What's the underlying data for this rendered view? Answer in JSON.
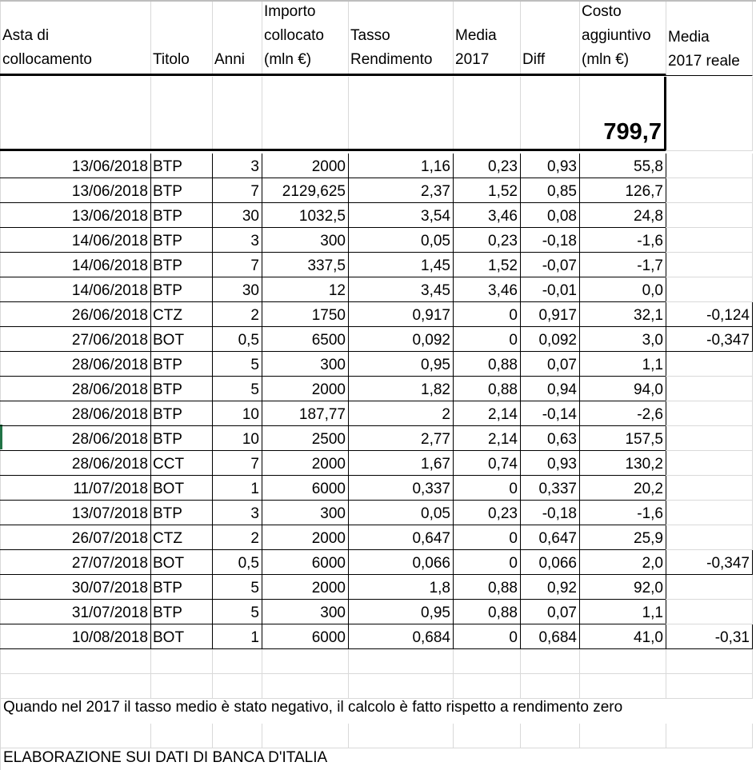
{
  "headers": [
    "Asta di\ncollocamento",
    "Titolo",
    "Anni",
    "Importo\ncollocato\n(mln €)",
    "Tasso\nRendimento",
    "Media\n2017",
    "Diff",
    "Costo\naggiuntivo\n(mln €)",
    "Media\n2017 reale"
  ],
  "total": "799,7",
  "rows": [
    [
      "13/06/2018",
      "BTP",
      "3",
      "2000",
      "1,16",
      "0,23",
      "0,93",
      "55,8",
      ""
    ],
    [
      "13/06/2018",
      "BTP",
      "7",
      "2129,625",
      "2,37",
      "1,52",
      "0,85",
      "126,7",
      ""
    ],
    [
      "13/06/2018",
      "BTP",
      "30",
      "1032,5",
      "3,54",
      "3,46",
      "0,08",
      "24,8",
      ""
    ],
    [
      "14/06/2018",
      "BTP",
      "3",
      "300",
      "0,05",
      "0,23",
      "-0,18",
      "-1,6",
      ""
    ],
    [
      "14/06/2018",
      "BTP",
      "7",
      "337,5",
      "1,45",
      "1,52",
      "-0,07",
      "-1,7",
      ""
    ],
    [
      "14/06/2018",
      "BTP",
      "30",
      "12",
      "3,45",
      "3,46",
      "-0,01",
      "0,0",
      ""
    ],
    [
      "26/06/2018",
      "CTZ",
      "2",
      "1750",
      "0,917",
      "0",
      "0,917",
      "32,1",
      "-0,124"
    ],
    [
      "27/06/2018",
      "BOT",
      "0,5",
      "6500",
      "0,092",
      "0",
      "0,092",
      "3,0",
      "-0,347"
    ],
    [
      "28/06/2018",
      "BTP",
      "5",
      "300",
      "0,95",
      "0,88",
      "0,07",
      "1,1",
      ""
    ],
    [
      "28/06/2018",
      "BTP",
      "5",
      "2000",
      "1,82",
      "0,88",
      "0,94",
      "94,0",
      ""
    ],
    [
      "28/06/2018",
      "BTP",
      "10",
      "187,77",
      "2",
      "2,14",
      "-0,14",
      "-2,6",
      ""
    ],
    [
      "28/06/2018",
      "BTP",
      "10",
      "2500",
      "2,77",
      "2,14",
      "0,63",
      "157,5",
      ""
    ],
    [
      "28/06/2018",
      "CCT",
      "7",
      "2000",
      "1,67",
      "0,74",
      "0,93",
      "130,2",
      ""
    ],
    [
      "11/07/2018",
      "BOT",
      "1",
      "6000",
      "0,337",
      "0",
      "0,337",
      "20,2",
      ""
    ],
    [
      "13/07/2018",
      "BTP",
      "3",
      "300",
      "0,05",
      "0,23",
      "-0,18",
      "-1,6",
      ""
    ],
    [
      "26/07/2018",
      "CTZ",
      "2",
      "2000",
      "0,647",
      "0",
      "0,647",
      "25,9",
      ""
    ],
    [
      "27/07/2018",
      "BOT",
      "0,5",
      "6000",
      "0,066",
      "0",
      "0,066",
      "2,0",
      "-0,347"
    ],
    [
      "30/07/2018",
      "BTP",
      "5",
      "2000",
      "1,8",
      "0,88",
      "0,92",
      "92,0",
      ""
    ],
    [
      "31/07/2018",
      "BTP",
      "5",
      "300",
      "0,95",
      "0,88",
      "0,07",
      "1,1",
      ""
    ],
    [
      "10/08/2018",
      "BOT",
      "1",
      "6000",
      "0,684",
      "0",
      "0,684",
      "41,0",
      "-0,31"
    ]
  ],
  "notes": {
    "negative_rate": "Quando nel 2017 il tasso medio è stato negativo, il calcolo è fatto rispetto a rendimento zero",
    "source": "ELABORAZIONE SUI DATI DI BANCA D'ITALIA"
  }
}
